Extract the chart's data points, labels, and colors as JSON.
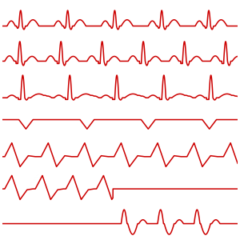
{
  "background_color": "#ffffff",
  "line_color": "#cc0000",
  "line_width": 1.1,
  "n_rows": 7,
  "figsize": [
    3.0,
    3.0
  ],
  "dpi": 100
}
